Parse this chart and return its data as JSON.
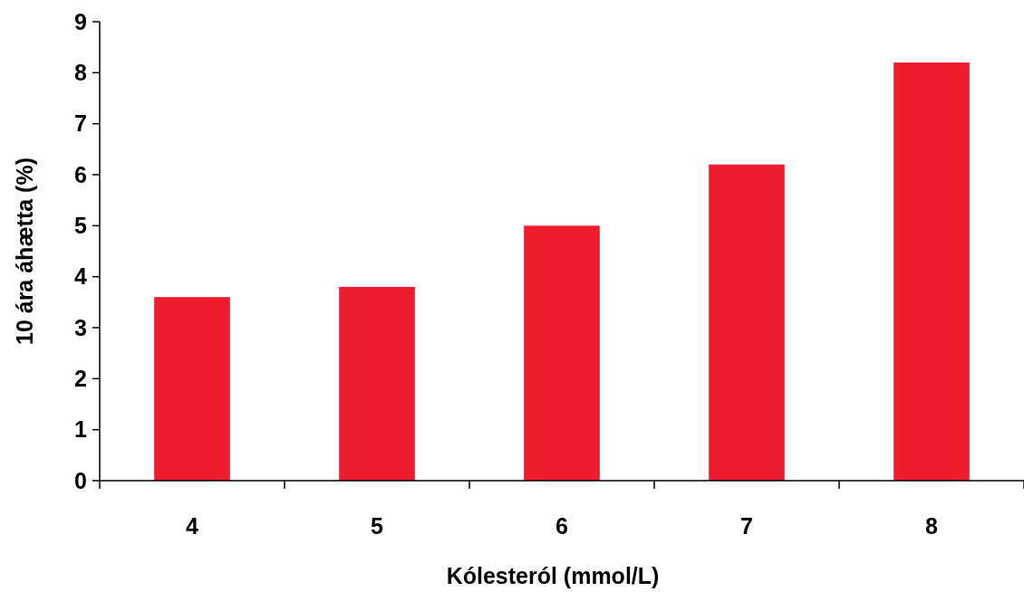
{
  "chart_data": {
    "type": "bar",
    "xlabel": "Kólesteról (mmol/L)",
    "ylabel": "10 ára áhætta (%)",
    "categories": [
      "4",
      "5",
      "6",
      "7",
      "8"
    ],
    "values": [
      3.6,
      3.8,
      5.0,
      6.2,
      8.2
    ],
    "color": "#ed1c2e",
    "ylim": [
      0,
      9
    ],
    "yticks": [
      0,
      1,
      2,
      3,
      4,
      5,
      6,
      7,
      8,
      9
    ],
    "grid": false
  }
}
